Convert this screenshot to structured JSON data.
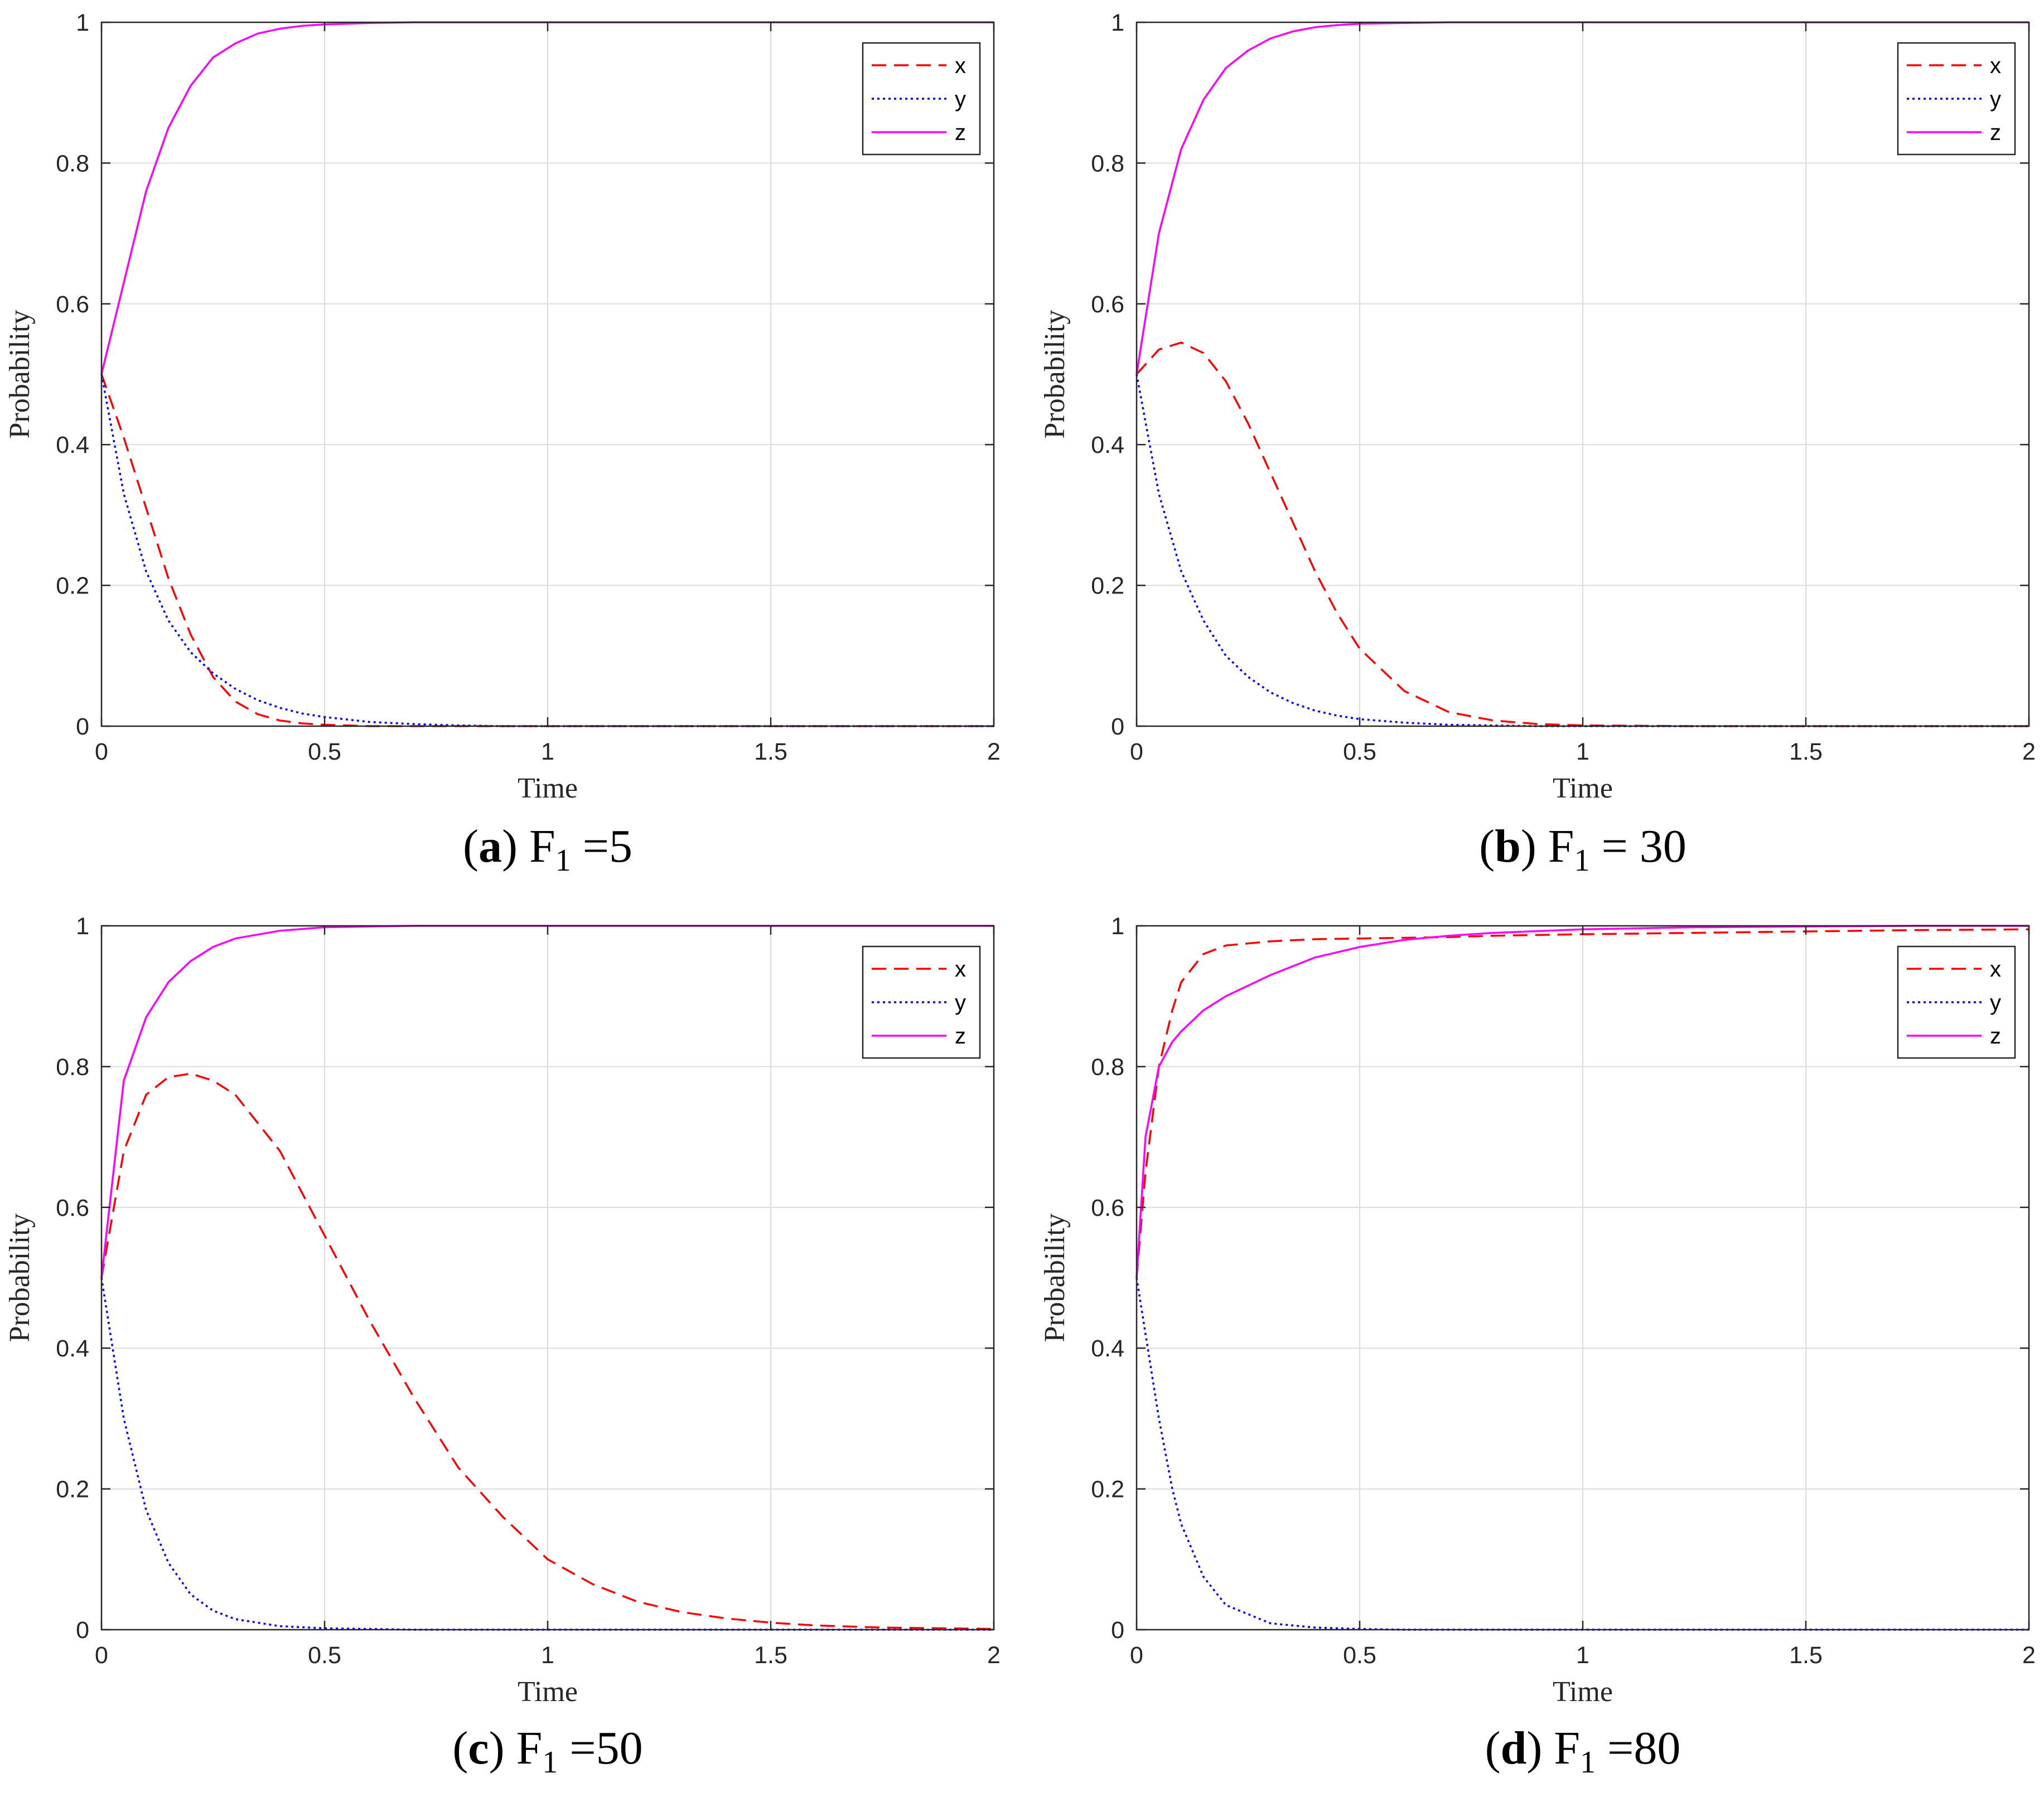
{
  "colors": {
    "x": "#ff0000",
    "y": "#0000ff",
    "z": "#ff00ff",
    "grid": "#dcdcdc",
    "axis": "#262626"
  },
  "chart_data": [
    {
      "type": "line",
      "caption": {
        "letter": "a",
        "text": "F",
        "sub": "1",
        "rest": " =5"
      },
      "xlabel": "Time",
      "ylabel": "Probability",
      "xlim": [
        0,
        2
      ],
      "ylim": [
        0,
        1
      ],
      "xticks": [
        "0",
        "0.5",
        "1",
        "1.5",
        "2"
      ],
      "yticks": [
        "0",
        "0.2",
        "0.4",
        "0.6",
        "0.8",
        "1"
      ],
      "grid": true,
      "legend_position": "top-right",
      "x": [
        0,
        0.05,
        0.1,
        0.15,
        0.2,
        0.25,
        0.3,
        0.35,
        0.4,
        0.45,
        0.5,
        0.6,
        0.7,
        0.8,
        0.9,
        1.0,
        1.25,
        1.5,
        1.75,
        2.0
      ],
      "series": [
        {
          "name": "x",
          "style": "dashed",
          "values": [
            0.5,
            0.41,
            0.31,
            0.21,
            0.13,
            0.07,
            0.035,
            0.017,
            0.008,
            0.004,
            0.002,
            0,
            0,
            0,
            0,
            0,
            0,
            0,
            0,
            0
          ]
        },
        {
          "name": "y",
          "style": "dotted",
          "values": [
            0.5,
            0.33,
            0.22,
            0.15,
            0.105,
            0.075,
            0.053,
            0.037,
            0.026,
            0.018,
            0.013,
            0.006,
            0.003,
            0.001,
            0,
            0,
            0,
            0,
            0,
            0
          ]
        },
        {
          "name": "z",
          "style": "solid",
          "values": [
            0.5,
            0.63,
            0.76,
            0.85,
            0.91,
            0.95,
            0.97,
            0.984,
            0.991,
            0.995,
            0.997,
            0.999,
            1,
            1,
            1,
            1,
            1,
            1,
            1,
            1
          ]
        }
      ]
    },
    {
      "type": "line",
      "caption": {
        "letter": "b",
        "text": "F",
        "sub": "1",
        "rest": " = 30"
      },
      "xlabel": "Time",
      "ylabel": "Probability",
      "xlim": [
        0,
        2
      ],
      "ylim": [
        0,
        1
      ],
      "xticks": [
        "0",
        "0.5",
        "1",
        "1.5",
        "2"
      ],
      "yticks": [
        "0",
        "0.2",
        "0.4",
        "0.6",
        "0.8",
        "1"
      ],
      "grid": true,
      "legend_position": "top-right",
      "x": [
        0,
        0.05,
        0.1,
        0.15,
        0.2,
        0.25,
        0.3,
        0.35,
        0.4,
        0.45,
        0.5,
        0.6,
        0.7,
        0.8,
        0.9,
        1.0,
        1.25,
        1.5,
        1.75,
        2.0
      ],
      "series": [
        {
          "name": "x",
          "style": "dashed",
          "values": [
            0.5,
            0.535,
            0.545,
            0.53,
            0.49,
            0.43,
            0.36,
            0.29,
            0.22,
            0.16,
            0.11,
            0.05,
            0.02,
            0.008,
            0.003,
            0.001,
            0,
            0,
            0,
            0
          ]
        },
        {
          "name": "y",
          "style": "dotted",
          "values": [
            0.5,
            0.33,
            0.22,
            0.15,
            0.1,
            0.07,
            0.048,
            0.033,
            0.022,
            0.015,
            0.01,
            0.005,
            0.002,
            0.001,
            0,
            0,
            0,
            0,
            0,
            0
          ]
        },
        {
          "name": "z",
          "style": "solid",
          "values": [
            0.5,
            0.7,
            0.82,
            0.89,
            0.935,
            0.96,
            0.977,
            0.987,
            0.993,
            0.996,
            0.998,
            0.999,
            1,
            1,
            1,
            1,
            1,
            1,
            1,
            1
          ]
        }
      ]
    },
    {
      "type": "line",
      "caption": {
        "letter": "c",
        "text": "F",
        "sub": "1",
        "rest": " =50"
      },
      "xlabel": "Time",
      "ylabel": "Probability",
      "xlim": [
        0,
        2
      ],
      "ylim": [
        0,
        1
      ],
      "xticks": [
        "0",
        "0.5",
        "1",
        "1.5",
        "2"
      ],
      "yticks": [
        "0",
        "0.2",
        "0.4",
        "0.6",
        "0.8",
        "1"
      ],
      "grid": true,
      "legend_position": "top-right",
      "x": [
        0,
        0.05,
        0.1,
        0.15,
        0.2,
        0.25,
        0.3,
        0.4,
        0.5,
        0.6,
        0.7,
        0.8,
        0.9,
        1.0,
        1.1,
        1.2,
        1.3,
        1.4,
        1.5,
        1.6,
        1.75,
        2.0
      ],
      "series": [
        {
          "name": "x",
          "style": "dashed",
          "values": [
            0.5,
            0.68,
            0.76,
            0.785,
            0.79,
            0.78,
            0.76,
            0.68,
            0.56,
            0.44,
            0.33,
            0.23,
            0.16,
            0.1,
            0.065,
            0.04,
            0.025,
            0.016,
            0.01,
            0.006,
            0.003,
            0.001
          ]
        },
        {
          "name": "y",
          "style": "dotted",
          "values": [
            0.5,
            0.3,
            0.17,
            0.095,
            0.05,
            0.027,
            0.015,
            0.005,
            0.002,
            0.001,
            0,
            0,
            0,
            0,
            0,
            0,
            0,
            0,
            0,
            0,
            0,
            0
          ]
        },
        {
          "name": "z",
          "style": "solid",
          "values": [
            0.5,
            0.78,
            0.87,
            0.92,
            0.95,
            0.97,
            0.982,
            0.993,
            0.998,
            0.999,
            1,
            1,
            1,
            1,
            1,
            1,
            1,
            1,
            1,
            1,
            1,
            1
          ]
        }
      ]
    },
    {
      "type": "line",
      "caption": {
        "letter": "d",
        "text": "F",
        "sub": "1",
        "rest": " =80"
      },
      "xlabel": "Time",
      "ylabel": "Probability",
      "xlim": [
        0,
        2
      ],
      "ylim": [
        0,
        1
      ],
      "xticks": [
        "0",
        "0.5",
        "1",
        "1.5",
        "2"
      ],
      "yticks": [
        "0",
        "0.2",
        "0.4",
        "0.6",
        "0.8",
        "1"
      ],
      "grid": true,
      "legend_position": "top-right",
      "x": [
        0,
        0.02,
        0.05,
        0.08,
        0.1,
        0.15,
        0.2,
        0.3,
        0.4,
        0.5,
        0.6,
        0.7,
        0.8,
        1.0,
        1.25,
        1.5,
        1.75,
        2.0
      ],
      "series": [
        {
          "name": "x",
          "style": "dashed",
          "values": [
            0.5,
            0.65,
            0.8,
            0.88,
            0.92,
            0.96,
            0.972,
            0.978,
            0.981,
            0.982,
            0.983,
            0.984,
            0.986,
            0.988,
            0.99,
            0.992,
            0.994,
            0.995
          ]
        },
        {
          "name": "y",
          "style": "dotted",
          "values": [
            0.5,
            0.42,
            0.3,
            0.2,
            0.15,
            0.075,
            0.035,
            0.009,
            0.003,
            0.001,
            0,
            0,
            0,
            0,
            0,
            0,
            0,
            0
          ]
        },
        {
          "name": "z",
          "style": "solid",
          "values": [
            0.5,
            0.7,
            0.8,
            0.835,
            0.85,
            0.88,
            0.9,
            0.93,
            0.955,
            0.97,
            0.98,
            0.986,
            0.99,
            0.995,
            0.998,
            0.999,
            1,
            1
          ]
        }
      ]
    }
  ]
}
